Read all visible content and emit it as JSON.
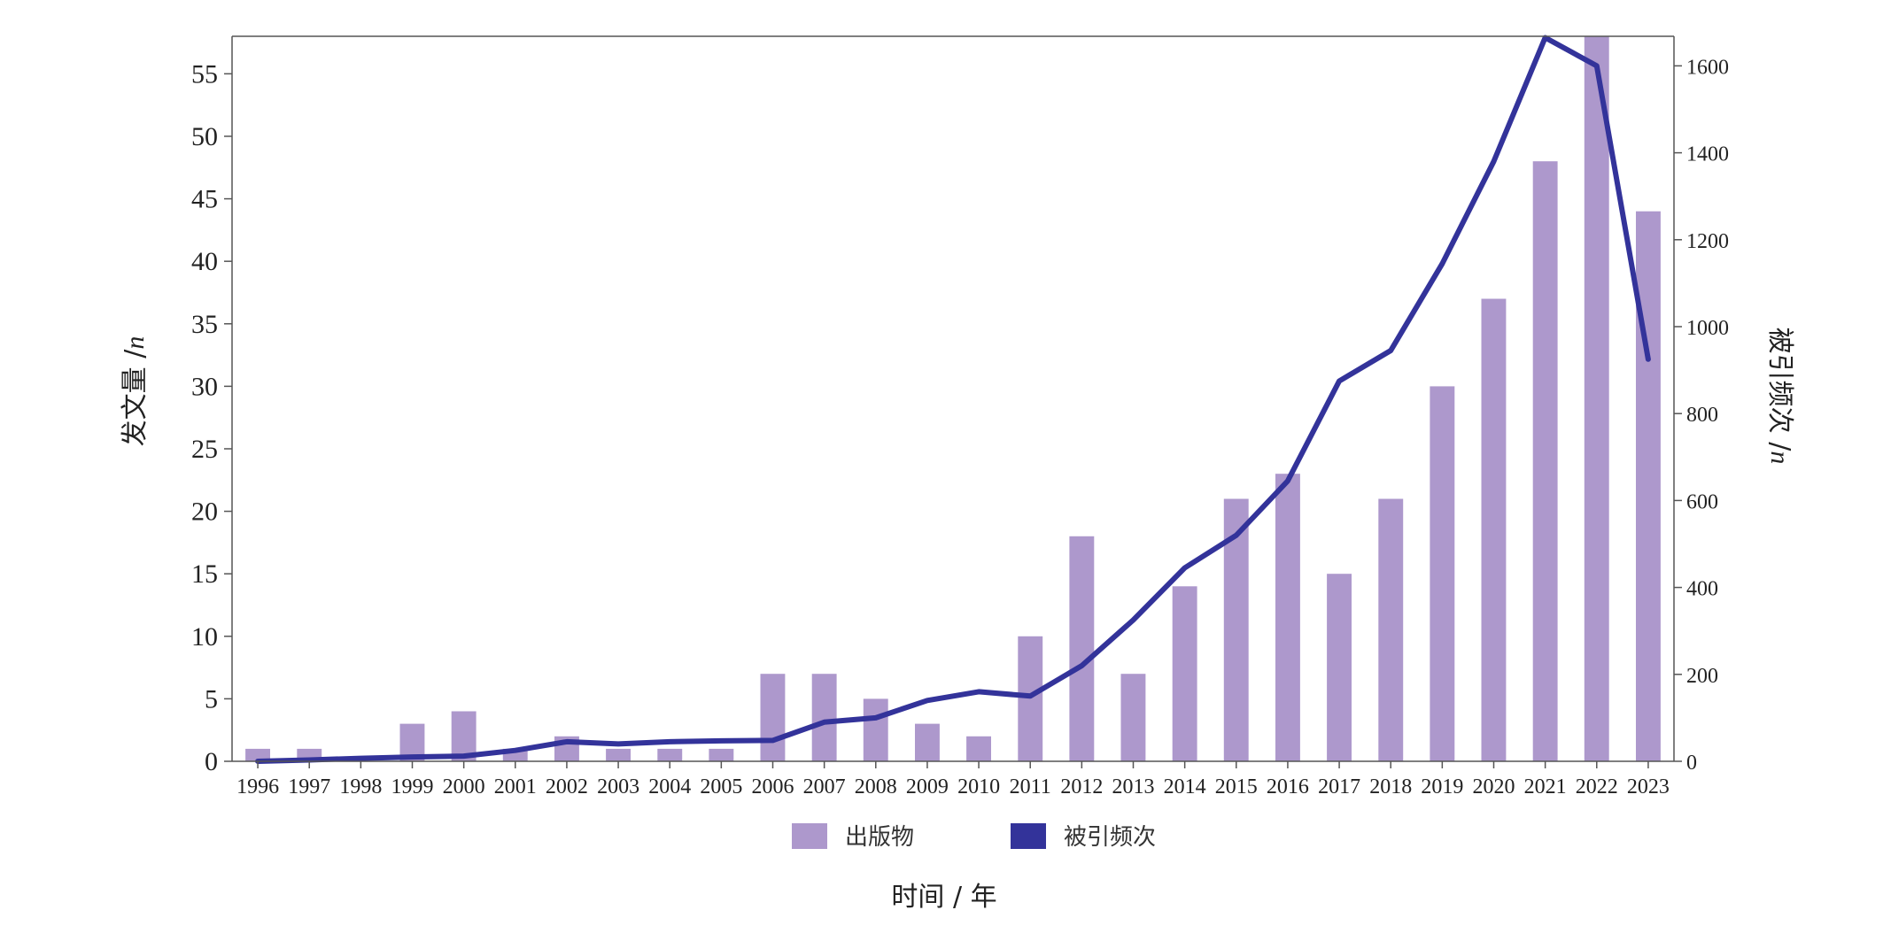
{
  "chart_data": {
    "type": "bar+line",
    "categories": [
      "1996",
      "1997",
      "1998",
      "1999",
      "2000",
      "2001",
      "2002",
      "2003",
      "2004",
      "2005",
      "2006",
      "2007",
      "2008",
      "2009",
      "2010",
      "2011",
      "2012",
      "2013",
      "2014",
      "2015",
      "2016",
      "2017",
      "2018",
      "2019",
      "2020",
      "2021",
      "2022",
      "2023"
    ],
    "series": [
      {
        "name": "出版物",
        "type": "bar",
        "axis": "left",
        "color": "#ad98cc",
        "values": [
          1,
          1,
          0,
          3,
          4,
          1,
          2,
          1,
          1,
          1,
          7,
          7,
          5,
          3,
          2,
          10,
          18,
          7,
          14,
          21,
          23,
          15,
          21,
          30,
          37,
          48,
          58,
          44
        ]
      },
      {
        "name": "被引频次",
        "type": "line",
        "axis": "right",
        "color": "#33339a",
        "values": [
          0,
          3,
          7,
          10,
          12,
          25,
          45,
          40,
          45,
          47,
          48,
          90,
          100,
          140,
          160,
          150,
          220,
          325,
          445,
          520,
          645,
          875,
          945,
          1145,
          1380,
          1665,
          1600,
          925
        ]
      }
    ],
    "xlabel": "时间 / 年",
    "ylabel_left": "发文量 /",
    "ylabel_left_unit": "n",
    "ylabel_right": "被引频次 /",
    "ylabel_right_unit": "n",
    "ylim_left": [
      0,
      58
    ],
    "yticks_left": [
      0,
      5,
      10,
      15,
      20,
      25,
      30,
      35,
      40,
      45,
      50,
      55
    ],
    "ylim_right": [
      0,
      1668
    ],
    "yticks_right": [
      0,
      200,
      400,
      600,
      800,
      1000,
      1200,
      1400,
      1600
    ],
    "legend_position": "bottom-center",
    "grid": false
  }
}
